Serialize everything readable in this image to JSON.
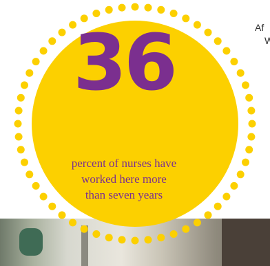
{
  "stat": {
    "number": "36",
    "caption_lines": [
      "percent of nurses have",
      "worked here more",
      "than seven years"
    ]
  },
  "side_text": {
    "line1": "Af",
    "line2": "W"
  },
  "colors": {
    "circle_fill": "#FCD000",
    "dots": "#FCD000",
    "number": "#7B2F8F",
    "caption": "#7B2F8F",
    "background": "#FFFFFF"
  }
}
